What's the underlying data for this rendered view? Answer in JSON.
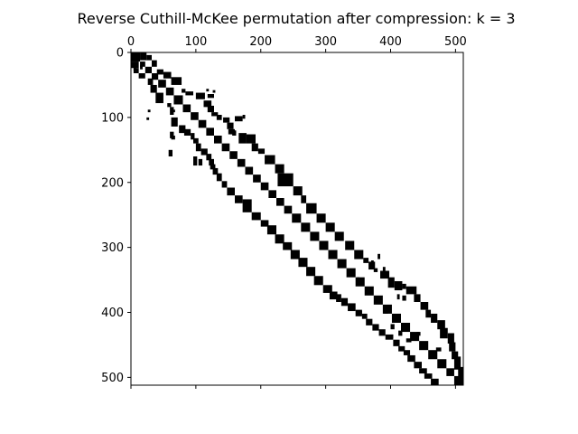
{
  "chart_data": {
    "type": "heatmap",
    "subtype": "sparsity-pattern",
    "title": "Reverse Cuthill-McKee permutation after compression: k = 3",
    "xlabel": "",
    "ylabel": "",
    "matrix_size": 512,
    "xlim": [
      0,
      512
    ],
    "ylim": [
      512,
      0
    ],
    "x_ticks": [
      0,
      100,
      200,
      300,
      400,
      500
    ],
    "y_ticks": [
      0,
      100,
      200,
      300,
      400,
      500
    ],
    "x_tick_labels": [
      "0",
      "100",
      "200",
      "300",
      "400",
      "500"
    ],
    "y_tick_labels": [
      "0",
      "100",
      "200",
      "300",
      "400",
      "500"
    ],
    "x_ticks_position": "top",
    "grid": false,
    "colors": {
      "nonzero": "#000000",
      "background": "#ffffff",
      "frame": "#000000"
    },
    "bands": [
      {
        "name": "main-diagonal",
        "blocks": [
          [
            0,
            14,
            0,
            14
          ],
          [
            14,
            22,
            14,
            22
          ],
          [
            22,
            32,
            22,
            32
          ],
          [
            32,
            42,
            32,
            42
          ],
          [
            42,
            54,
            42,
            54
          ],
          [
            54,
            66,
            54,
            66
          ],
          [
            66,
            80,
            66,
            80
          ],
          [
            80,
            92,
            80,
            92
          ],
          [
            92,
            104,
            92,
            104
          ],
          [
            104,
            116,
            104,
            116
          ],
          [
            116,
            128,
            116,
            128
          ],
          [
            128,
            140,
            128,
            140
          ],
          [
            140,
            152,
            140,
            152
          ],
          [
            152,
            164,
            152,
            164
          ],
          [
            164,
            176,
            164,
            176
          ],
          [
            176,
            188,
            176,
            188
          ],
          [
            188,
            200,
            188,
            200
          ],
          [
            200,
            212,
            200,
            212
          ],
          [
            212,
            224,
            212,
            224
          ],
          [
            224,
            236,
            224,
            236
          ],
          [
            236,
            248,
            236,
            248
          ],
          [
            248,
            262,
            248,
            262
          ],
          [
            262,
            276,
            262,
            276
          ],
          [
            276,
            290,
            276,
            290
          ],
          [
            290,
            304,
            290,
            304
          ],
          [
            304,
            318,
            304,
            318
          ],
          [
            318,
            332,
            318,
            332
          ],
          [
            332,
            346,
            332,
            346
          ],
          [
            346,
            360,
            346,
            360
          ],
          [
            360,
            374,
            360,
            374
          ],
          [
            374,
            388,
            374,
            388
          ],
          [
            388,
            402,
            388,
            402
          ],
          [
            402,
            416,
            402,
            416
          ],
          [
            416,
            430,
            416,
            430
          ],
          [
            430,
            444,
            430,
            444
          ],
          [
            444,
            458,
            444,
            458
          ],
          [
            458,
            472,
            458,
            472
          ],
          [
            472,
            486,
            472,
            486
          ],
          [
            486,
            498,
            486,
            498
          ],
          [
            498,
            512,
            498,
            512
          ]
        ]
      },
      {
        "name": "upper-band",
        "blocks": [
          [
            0,
            12,
            14,
            24
          ],
          [
            4,
            12,
            24,
            32
          ],
          [
            12,
            22,
            32,
            40
          ],
          [
            26,
            34,
            40,
            50
          ],
          [
            30,
            40,
            50,
            62
          ],
          [
            38,
            50,
            62,
            78
          ],
          [
            56,
            62,
            78,
            84
          ],
          [
            60,
            66,
            84,
            96
          ],
          [
            62,
            72,
            100,
            114
          ],
          [
            64,
            70,
            118,
            128
          ],
          [
            74,
            84,
            112,
            124
          ],
          [
            82,
            92,
            118,
            128
          ],
          [
            92,
            98,
            124,
            134
          ],
          [
            96,
            104,
            132,
            140
          ],
          [
            100,
            108,
            142,
            152
          ],
          [
            108,
            118,
            148,
            158
          ],
          [
            118,
            126,
            150,
            160
          ],
          [
            122,
            128,
            156,
            162
          ],
          [
            124,
            140,
            166,
            178
          ],
          [
            126,
            140,
            178,
            192
          ],
          [
            140,
            152,
            186,
            196
          ],
          [
            148,
            156,
            196,
            206
          ],
          [
            158,
            172,
            206,
            222
          ],
          [
            172,
            186,
            222,
            236
          ],
          [
            186,
            206,
            226,
            250
          ],
          [
            206,
            220,
            250,
            264
          ],
          [
            220,
            232,
            262,
            270
          ],
          [
            232,
            248,
            270,
            286
          ],
          [
            248,
            262,
            286,
            300
          ],
          [
            262,
            276,
            300,
            314
          ],
          [
            276,
            290,
            314,
            328
          ],
          [
            290,
            304,
            330,
            344
          ],
          [
            304,
            318,
            344,
            358
          ],
          [
            316,
            324,
            358,
            366
          ],
          [
            322,
            334,
            366,
            376
          ],
          [
            332,
            338,
            374,
            380
          ],
          [
            336,
            348,
            384,
            398
          ],
          [
            346,
            362,
            396,
            406
          ],
          [
            352,
            366,
            406,
            418
          ],
          [
            356,
            364,
            418,
            424
          ],
          [
            360,
            372,
            424,
            440
          ],
          [
            372,
            384,
            436,
            446
          ],
          [
            384,
            396,
            446,
            458
          ],
          [
            396,
            408,
            454,
            462
          ],
          [
            402,
            416,
            462,
            472
          ],
          [
            412,
            426,
            472,
            484
          ],
          [
            424,
            440,
            476,
            488
          ],
          [
            432,
            448,
            488,
            498
          ],
          [
            446,
            460,
            490,
            500
          ],
          [
            460,
            472,
            494,
            504
          ],
          [
            468,
            488,
            498,
            508
          ],
          [
            484,
            500,
            504,
            512
          ]
        ]
      },
      {
        "name": "lower-band",
        "blocks": [
          [
            14,
            24,
            0,
            12
          ],
          [
            24,
            32,
            4,
            12
          ],
          [
            32,
            40,
            12,
            22
          ],
          [
            40,
            50,
            26,
            34
          ],
          [
            50,
            62,
            30,
            40
          ],
          [
            62,
            78,
            38,
            50
          ],
          [
            78,
            84,
            56,
            62
          ],
          [
            84,
            96,
            60,
            66
          ],
          [
            100,
            114,
            62,
            72
          ],
          [
            112,
            124,
            74,
            84
          ],
          [
            118,
            128,
            82,
            92
          ],
          [
            124,
            134,
            92,
            98
          ],
          [
            132,
            140,
            96,
            104
          ],
          [
            140,
            152,
            100,
            108
          ],
          [
            148,
            158,
            108,
            118
          ],
          [
            156,
            166,
            116,
            124
          ],
          [
            164,
            174,
            120,
            128
          ],
          [
            172,
            180,
            122,
            130
          ],
          [
            178,
            188,
            126,
            134
          ],
          [
            186,
            198,
            132,
            140
          ],
          [
            198,
            208,
            140,
            148
          ],
          [
            208,
            220,
            148,
            160
          ],
          [
            220,
            232,
            160,
            172
          ],
          [
            226,
            246,
            172,
            186
          ],
          [
            246,
            258,
            186,
            200
          ],
          [
            258,
            268,
            200,
            212
          ],
          [
            266,
            280,
            210,
            224
          ],
          [
            280,
            294,
            222,
            236
          ],
          [
            292,
            304,
            234,
            248
          ],
          [
            304,
            318,
            246,
            260
          ],
          [
            316,
            330,
            258,
            272
          ],
          [
            330,
            344,
            270,
            284
          ],
          [
            344,
            358,
            282,
            296
          ],
          [
            358,
            370,
            296,
            310
          ],
          [
            368,
            380,
            306,
            318
          ],
          [
            372,
            384,
            316,
            324
          ],
          [
            378,
            390,
            324,
            334
          ],
          [
            386,
            398,
            334,
            346
          ],
          [
            396,
            406,
            346,
            356
          ],
          [
            402,
            410,
            356,
            364
          ],
          [
            410,
            420,
            362,
            372
          ],
          [
            418,
            428,
            372,
            382
          ],
          [
            426,
            436,
            382,
            392
          ],
          [
            434,
            442,
            392,
            404
          ],
          [
            442,
            452,
            404,
            414
          ],
          [
            452,
            460,
            412,
            422
          ],
          [
            458,
            466,
            420,
            430
          ],
          [
            466,
            476,
            426,
            438
          ],
          [
            476,
            486,
            436,
            448
          ],
          [
            486,
            494,
            444,
            456
          ],
          [
            494,
            502,
            452,
            464
          ],
          [
            502,
            512,
            462,
            474
          ]
        ]
      },
      {
        "name": "scattered-off-diagonal",
        "blocks": [
          [
            18,
            28,
            4,
            8
          ],
          [
            20,
            26,
            14,
            18
          ],
          [
            88,
            92,
            26,
            30
          ],
          [
            100,
            104,
            24,
            28
          ],
          [
            122,
            132,
            60,
            66
          ],
          [
            128,
            134,
            62,
            68
          ],
          [
            150,
            160,
            58,
            64
          ],
          [
            160,
            174,
            96,
            102
          ],
          [
            164,
            174,
            104,
            110
          ],
          [
            56,
            60,
            116,
            120
          ],
          [
            58,
            62,
            126,
            130
          ],
          [
            98,
            106,
            160,
            172
          ],
          [
            96,
            102,
            172,
            176
          ],
          [
            120,
            124,
            158,
            162
          ],
          [
            88,
            92,
            64,
            68
          ],
          [
            310,
            318,
            380,
            384
          ],
          [
            320,
            332,
            370,
            374
          ],
          [
            330,
            336,
            388,
            392
          ],
          [
            346,
            352,
            348,
            352
          ],
          [
            372,
            380,
            410,
            414
          ],
          [
            374,
            382,
            418,
            424
          ],
          [
            398,
            404,
            352,
            356
          ],
          [
            396,
            402,
            390,
            396
          ],
          [
            434,
            440,
            400,
            404
          ],
          [
            418,
            426,
            400,
            406
          ],
          [
            428,
            436,
            412,
            418
          ],
          [
            440,
            446,
            424,
            432
          ],
          [
            454,
            460,
            470,
            478
          ],
          [
            430,
            436,
            440,
            446
          ]
        ]
      }
    ]
  }
}
